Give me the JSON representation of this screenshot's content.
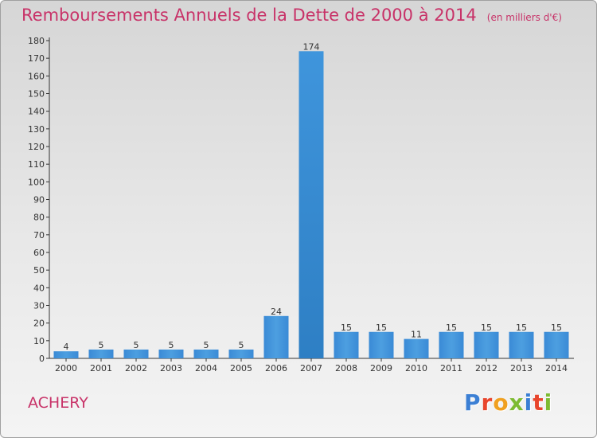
{
  "title": "Remboursements Annuels de la Dette de 2000 à 2014",
  "subtitle": "(en milliers d'€)",
  "town": "ACHERY",
  "logo": {
    "text": "Proxiti",
    "letter_colors": [
      "#3b7fd4",
      "#e8452c",
      "#f0a020",
      "#7dbb32",
      "#3b7fd4",
      "#e8452c",
      "#7dbb32"
    ]
  },
  "colors": {
    "title": "#c83268",
    "bar": "#4d9fe0",
    "bar_highlight": "#2e7fc4"
  },
  "chart_data": {
    "type": "bar",
    "title": "Remboursements Annuels de la Dette de 2000 à 2014",
    "xlabel": "",
    "ylabel": "",
    "categories": [
      "2000",
      "2001",
      "2002",
      "2003",
      "2004",
      "2005",
      "2006",
      "2007",
      "2008",
      "2009",
      "2010",
      "2011",
      "2012",
      "2013",
      "2014"
    ],
    "values": [
      4,
      5,
      5,
      5,
      5,
      5,
      24,
      174,
      15,
      15,
      11,
      15,
      15,
      15,
      15
    ],
    "ylim": [
      0,
      180
    ],
    "yticks": [
      0,
      10,
      20,
      30,
      40,
      50,
      60,
      70,
      80,
      90,
      100,
      110,
      120,
      130,
      140,
      150,
      160,
      170,
      180
    ],
    "grid": false,
    "legend": "none"
  }
}
